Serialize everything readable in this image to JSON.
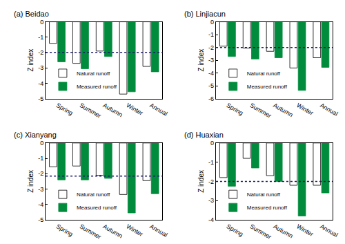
{
  "chart_data": [
    {
      "type": "bar",
      "title": "(a) Beidao",
      "y_label": "Z index",
      "categories": [
        "Spring",
        "Summer",
        "Autumn",
        "Winter",
        "Annual"
      ],
      "series": [
        {
          "name": "Natural runoff",
          "color": "#ffffff",
          "values": [
            -1.4,
            -2.7,
            -1.9,
            -4.7,
            -2.9
          ]
        },
        {
          "name": "Measured runoff",
          "color": "#008c3c",
          "values": [
            -2.6,
            -3.05,
            -2.25,
            -4.55,
            -3.25
          ]
        }
      ],
      "ylim": [
        -5,
        0
      ],
      "yticks": [
        0,
        -1,
        -2,
        -3,
        -4,
        -5
      ],
      "legend": "lower left",
      "threshold": {
        "value": -2,
        "color": "#1a1a6e",
        "line_style": "dotted"
      }
    },
    {
      "type": "bar",
      "title": "(b) Linjiacun",
      "y_label": "Z index",
      "categories": [
        "Spring",
        "Summer",
        "Autumn",
        "Winter",
        "Annual"
      ],
      "series": [
        {
          "name": "Natural runoff",
          "color": "#ffffff",
          "values": [
            -1.9,
            -2.05,
            -2.3,
            -3.6,
            -2.8
          ]
        },
        {
          "name": "Measured runoff",
          "color": "#008c3c",
          "values": [
            -2.7,
            -2.9,
            -2.8,
            -5.35,
            -3.55
          ]
        }
      ],
      "ylim": [
        -6,
        0
      ],
      "yticks": [
        0,
        -1,
        -2,
        -3,
        -4,
        -5,
        -6
      ],
      "legend": "lower left",
      "threshold": {
        "value": -2,
        "color": "#1a1a6e",
        "line_style": "dotted"
      }
    },
    {
      "type": "bar",
      "title": "(c) Xianyang",
      "y_label": "Z index",
      "categories": [
        "Spring",
        "Summer",
        "Autumn",
        "Winter",
        "Annual"
      ],
      "series": [
        {
          "name": "Natural runoff",
          "color": "#ffffff",
          "values": [
            -1.55,
            -1.5,
            -2.1,
            -3.35,
            -2.45
          ]
        },
        {
          "name": "Measured runoff",
          "color": "#008c3c",
          "values": [
            -2.4,
            -2.4,
            -2.3,
            -4.55,
            -3.3
          ]
        }
      ],
      "ylim": [
        -5,
        0
      ],
      "yticks": [
        0,
        -1,
        -2,
        -3,
        -4,
        -5
      ],
      "legend": "lower left",
      "threshold": {
        "value": -2.15,
        "color": "#1a1a6e",
        "line_style": "dotted"
      }
    },
    {
      "type": "bar",
      "title": "(d) Huaxian",
      "y_label": "Z index",
      "categories": [
        "Spring",
        "Summer",
        "Autumn",
        "Winter",
        "Annual"
      ],
      "series": [
        {
          "name": "Natural runoff",
          "color": "#ffffff",
          "values": [
            -1.8,
            -0.8,
            -1.7,
            -2.2,
            -2.2
          ]
        },
        {
          "name": "Measured runoff",
          "color": "#008c3c",
          "values": [
            -2.25,
            -1.3,
            -2.0,
            -3.8,
            -2.6
          ]
        }
      ],
      "ylim": [
        -4,
        0
      ],
      "yticks": [
        0,
        -1,
        -2,
        -3,
        -4
      ],
      "legend": "lower left",
      "threshold": {
        "value": -2,
        "color": "#1a1a6e",
        "line_style": "dotted"
      }
    }
  ]
}
